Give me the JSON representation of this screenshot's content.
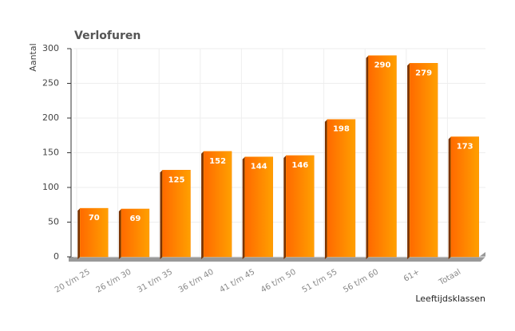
{
  "chart_data": {
    "type": "bar",
    "title": "Verlofuren",
    "y_label": "Aantal",
    "x_label": "Leeftijdsklassen",
    "categories": [
      "20 t/m 25",
      "26 t/m 30",
      "31 t/m 35",
      "36 t/m 40",
      "41 t/m 45",
      "46 t/m 50",
      "51 t/m 55",
      "56 t/m 60",
      "61+",
      "Totaal"
    ],
    "values": [
      70,
      69,
      125,
      152,
      144,
      146,
      198,
      290,
      279,
      173
    ],
    "color": "#ff8c00",
    "ylim": [
      0,
      300
    ],
    "yticks": [
      0,
      50,
      100,
      150,
      200,
      250,
      300
    ],
    "grid": true
  }
}
